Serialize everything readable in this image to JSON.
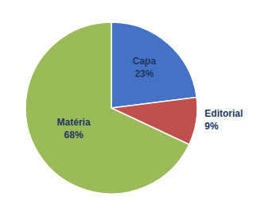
{
  "chart_data": {
    "type": "pie",
    "categories": [
      "Capa",
      "Editorial",
      "Matéria"
    ],
    "values": [
      23,
      9,
      68
    ],
    "value_labels": [
      "23%",
      "9%",
      "68%"
    ],
    "colors": [
      "#4472C4",
      "#C0504D",
      "#9BBB59"
    ],
    "data_labels": true
  }
}
